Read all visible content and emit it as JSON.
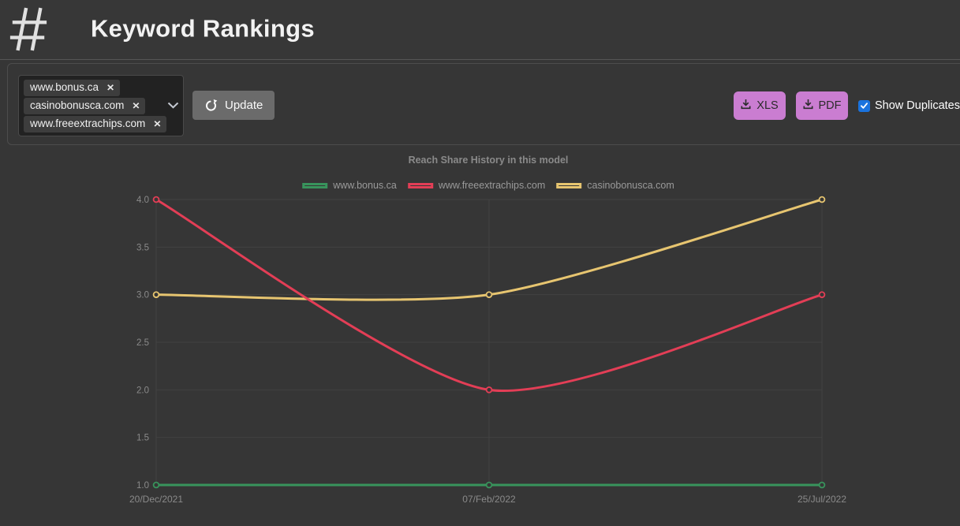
{
  "header": {
    "logo": "#",
    "title": "Keyword Rankings"
  },
  "toolbar": {
    "selected_domains": [
      "www.bonus.ca",
      "casinobonusca.com",
      "www.freeextrachips.com"
    ],
    "remove_icon": "✕",
    "update_label": "Update",
    "export": {
      "xls_label": "XLS",
      "pdf_label": "PDF"
    },
    "show_duplicates": {
      "label": "Show Duplicates",
      "checked": true
    }
  },
  "chart_data": {
    "type": "line",
    "title": "Reach Share History in this model",
    "x": [
      "20/Dec/2021",
      "07/Feb/2022",
      "25/Jul/2022"
    ],
    "series": [
      {
        "name": "www.bonus.ca",
        "color": "#38945c",
        "values": [
          1.0,
          1.0,
          1.0
        ]
      },
      {
        "name": "www.freeextrachips.com",
        "color": "#e33e56",
        "values": [
          4.0,
          2.0,
          3.0
        ]
      },
      {
        "name": "casinobonusca.com",
        "color": "#e7c570",
        "values": [
          3.0,
          3.0,
          4.0
        ]
      }
    ],
    "ylim": [
      1.0,
      4.0
    ],
    "ytick_step": 0.5,
    "grid": true,
    "legend_position": "top",
    "draw_order": [
      0,
      2,
      1
    ]
  },
  "colors": {
    "background": "#363636",
    "gridline": "#424242",
    "axis_text": "#8a8a8a",
    "accent_purple": "#ca7dd1",
    "checkbox_blue": "#1a73de",
    "green": "#38945c",
    "red": "#e33e56",
    "yellow": "#e7c570"
  }
}
